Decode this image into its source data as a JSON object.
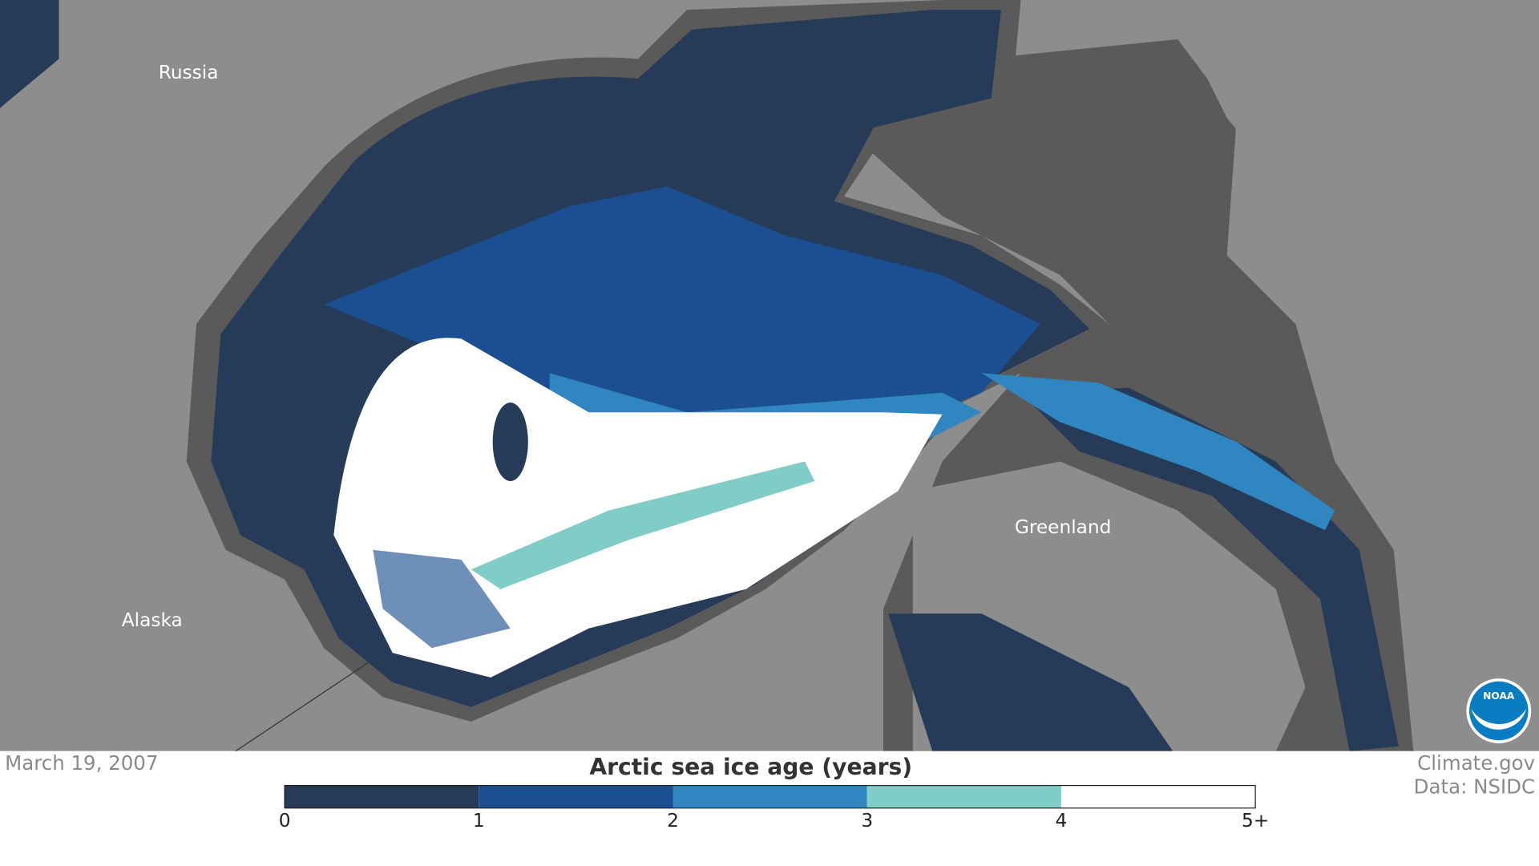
{
  "map": {
    "place_labels": [
      "Russia",
      "Alaska",
      "Greenland"
    ],
    "date": "March 19, 2007",
    "credit": [
      "Climate.gov",
      "Data: NSIDC"
    ],
    "logo": "NOAA",
    "legend": {
      "title": "Arctic sea ice age (years)",
      "colors": [
        "#263b57",
        "#1b4f91",
        "#2f86c0",
        "#7fcdc6",
        "#ffffff"
      ],
      "ticks": [
        "0",
        "1",
        "2",
        "3",
        "4",
        "5+"
      ]
    }
  }
}
